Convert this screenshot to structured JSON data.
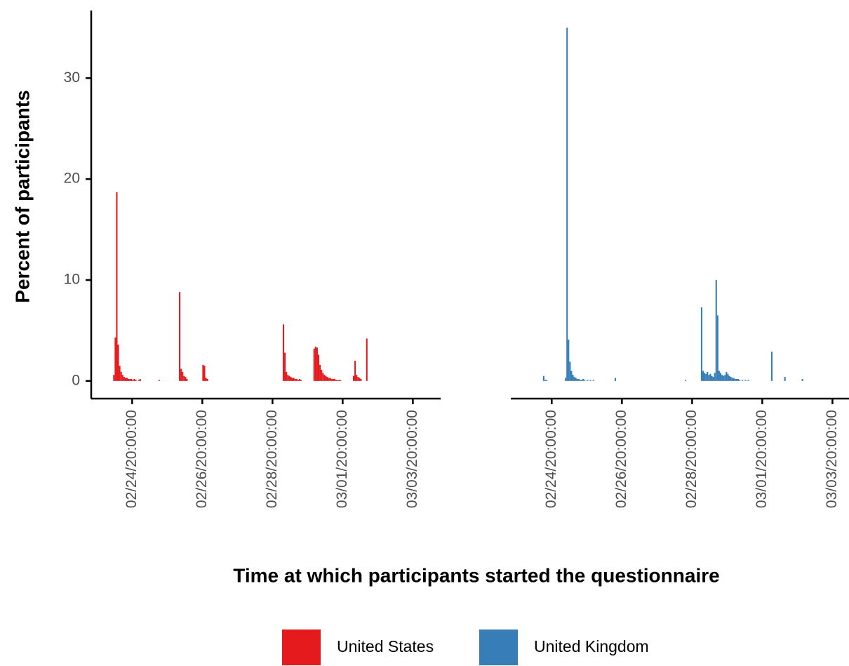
{
  "chart_data": {
    "type": "bar",
    "facet_by_series": true,
    "x_label": "Time at which participants started the questionnaire",
    "y_label": "Percent of participants",
    "xlim": [
      "02/23/16:00:00",
      "03/04/15:00:00"
    ],
    "xticks": [
      "02/24/20:00:00",
      "02/26/20:00:00",
      "02/28/20:00:00",
      "03/01/20:00:00",
      "03/03/20:00:00"
    ],
    "ylim": [
      -1.75,
      36.7
    ],
    "yticks": [
      0,
      10,
      20,
      30
    ],
    "grid": false,
    "legend": "bottom",
    "series": [
      {
        "name": "United States",
        "color": "#e41a1c",
        "x": [
          "02/24/07:00:00",
          "02/24/08:00:00",
          "02/24/09:00:00",
          "02/24/10:00:00",
          "02/24/11:00:00",
          "02/24/12:00:00",
          "02/24/13:00:00",
          "02/24/14:00:00",
          "02/24/15:00:00",
          "02/24/16:00:00",
          "02/24/17:00:00",
          "02/24/18:00:00",
          "02/24/19:00:00",
          "02/24/20:00:00",
          "02/24/21:00:00",
          "02/24/22:00:00",
          "02/25/00:00:00",
          "02/25/01:00:00",
          "02/25/14:00:00",
          "02/26/04:00:00",
          "02/26/05:00:00",
          "02/26/06:00:00",
          "02/26/07:00:00",
          "02/26/08:00:00",
          "02/26/09:00:00",
          "02/26/20:00:00",
          "02/26/21:00:00",
          "02/26/22:00:00",
          "02/26/23:00:00",
          "02/29/03:00:00",
          "02/29/04:00:00",
          "02/29/05:00:00",
          "02/29/06:00:00",
          "02/29/07:00:00",
          "02/29/08:00:00",
          "02/29/09:00:00",
          "02/29/10:00:00",
          "02/29/11:00:00",
          "02/29/12:00:00",
          "02/29/13:00:00",
          "02/29/14:00:00",
          "02/29/15:00:00",
          "03/01/00:00:00",
          "03/01/01:00:00",
          "03/01/02:00:00",
          "03/01/03:00:00",
          "03/01/04:00:00",
          "03/01/05:00:00",
          "03/01/06:00:00",
          "03/01/07:00:00",
          "03/01/08:00:00",
          "03/01/09:00:00",
          "03/01/10:00:00",
          "03/01/11:00:00",
          "03/01/12:00:00",
          "03/01/13:00:00",
          "03/01/14:00:00",
          "03/01/15:00:00",
          "03/01/16:00:00",
          "03/01/17:00:00",
          "03/01/18:00:00",
          "03/02/03:00:00",
          "03/02/04:00:00",
          "03/02/05:00:00",
          "03/02/06:00:00",
          "03/02/07:00:00",
          "03/02/08:00:00",
          "03/02/12:00:00"
        ],
        "values": [
          0.6,
          4.3,
          18.7,
          3.6,
          1.5,
          0.9,
          0.6,
          0.4,
          0.3,
          0.3,
          0.2,
          0.2,
          0.2,
          0.1,
          0.2,
          0.1,
          0.1,
          0.2,
          0.1,
          8.8,
          1.2,
          0.9,
          0.5,
          0.4,
          0.2,
          1.6,
          1.5,
          0.3,
          0.2,
          5.6,
          2.8,
          0.9,
          0.6,
          0.5,
          0.4,
          0.3,
          0.3,
          0.2,
          0.2,
          0.1,
          0.2,
          0.1,
          3.2,
          3.4,
          3.3,
          2.6,
          1.6,
          1.1,
          0.8,
          0.6,
          0.5,
          0.4,
          0.3,
          0.3,
          0.2,
          0.2,
          0.2,
          0.1,
          0.1,
          0.1,
          0.1,
          0.5,
          2.0,
          0.6,
          0.4,
          0.3,
          0.2,
          4.2
        ]
      },
      {
        "name": "United Kingdom",
        "color": "#377eb8",
        "x": [
          "02/24/14:00:00",
          "02/24/15:00:00",
          "02/24/16:00:00",
          "02/25/05:00:00",
          "02/25/06:00:00",
          "02/25/07:00:00",
          "02/25/08:00:00",
          "02/25/09:00:00",
          "02/25/10:00:00",
          "02/25/11:00:00",
          "02/25/12:00:00",
          "02/25/13:00:00",
          "02/25/14:00:00",
          "02/25/15:00:00",
          "02/25/16:00:00",
          "02/25/17:00:00",
          "02/25/18:00:00",
          "02/25/20:00:00",
          "02/25/22:00:00",
          "02/26/00:00:00",
          "02/26/15:00:00",
          "02/28/15:00:00",
          "02/29/02:00:00",
          "02/29/03:00:00",
          "02/29/04:00:00",
          "02/29/05:00:00",
          "02/29/06:00:00",
          "02/29/07:00:00",
          "02/29/08:00:00",
          "02/29/09:00:00",
          "02/29/10:00:00",
          "02/29/11:00:00",
          "02/29/12:00:00",
          "02/29/13:00:00",
          "02/29/14:00:00",
          "02/29/15:00:00",
          "02/29/16:00:00",
          "02/29/17:00:00",
          "02/29/18:00:00",
          "02/29/19:00:00",
          "02/29/20:00:00",
          "02/29/21:00:00",
          "02/29/22:00:00",
          "02/29/23:00:00",
          "03/01/00:00:00",
          "03/01/01:00:00",
          "03/01/02:00:00",
          "03/01/03:00:00",
          "03/01/04:00:00",
          "03/01/06:00:00",
          "03/01/08:00:00",
          "03/01/10:00:00",
          "03/02/02:00:00",
          "03/02/11:00:00",
          "03/02/23:00:00"
        ],
        "values": [
          0.5,
          0.1,
          0.1,
          0.3,
          35.0,
          4.1,
          1.9,
          1.0,
          0.6,
          0.4,
          0.3,
          0.2,
          0.2,
          0.1,
          0.1,
          0.2,
          0.1,
          0.1,
          0.1,
          0.1,
          0.3,
          0.1,
          7.3,
          1.0,
          0.8,
          0.7,
          0.9,
          0.6,
          0.7,
          0.5,
          0.4,
          0.8,
          10.0,
          6.5,
          1.0,
          0.8,
          0.6,
          0.5,
          0.6,
          0.9,
          0.7,
          0.5,
          0.4,
          0.3,
          0.3,
          0.2,
          0.2,
          0.2,
          0.1,
          0.1,
          0.1,
          0.1,
          2.9,
          0.4,
          0.2
        ]
      }
    ]
  }
}
